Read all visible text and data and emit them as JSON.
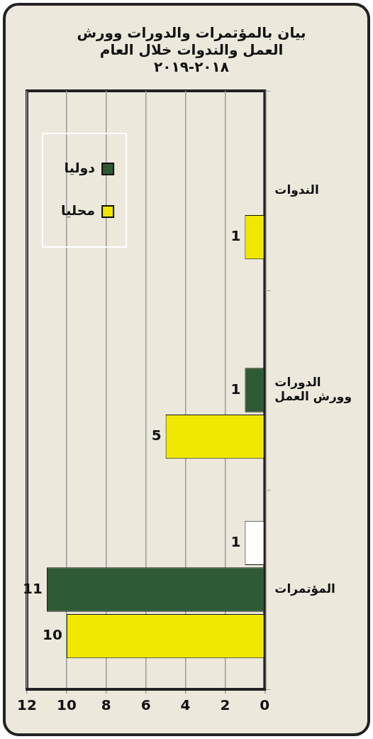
{
  "chart_data": {
    "type": "bar",
    "orientation": "horizontal",
    "title": "بيان بالمؤتمرات والدورات وورش العمل والندوات خلال العام ٢٠١٨-٢٠١٩",
    "categories": [
      "الندوات",
      "الدورات وورش العمل",
      "المؤتمرات"
    ],
    "series": [
      {
        "color": "#ffffff",
        "values": [
          null,
          null,
          1
        ]
      },
      {
        "name": "دوليا",
        "color": "#2f5a36",
        "values": [
          null,
          1,
          11
        ]
      },
      {
        "name": "محليا",
        "color": "#f0e800",
        "values": [
          1,
          5,
          10
        ]
      }
    ],
    "xlim": [
      12,
      0
    ],
    "xticks": [
      0,
      2,
      4,
      6,
      8,
      10,
      12
    ],
    "grid": "x",
    "legend": "top left",
    "data_labels": true
  }
}
